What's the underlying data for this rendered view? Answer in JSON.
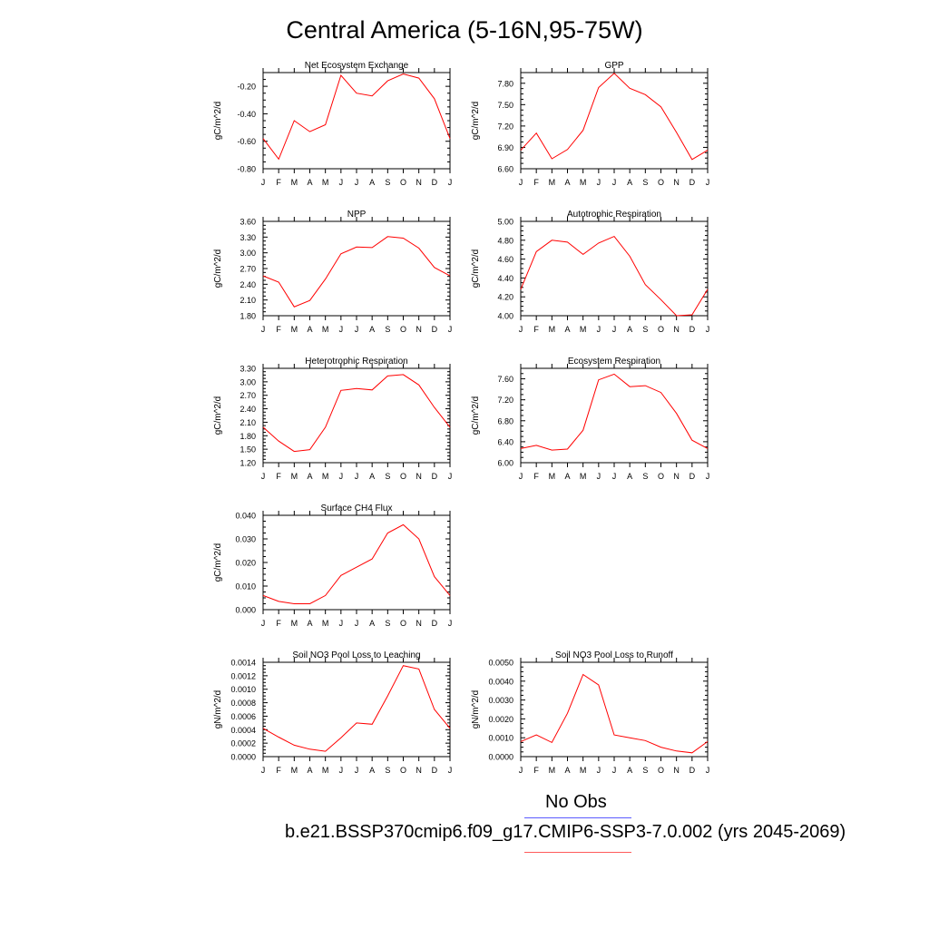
{
  "title": "Central America (5-16N,95-75W)",
  "legend": {
    "obs_label": "No Obs",
    "case_label": "b.e21.BSSP370cmip6.f09_g17.CMIP6-SSP3-7.0.002 (yrs 2045-2069)",
    "obs_color": "#5b5bff",
    "case_color": "#ff5b5b"
  },
  "colors": {
    "series": "#ff0000",
    "axis": "#000000"
  },
  "chart_data": [
    {
      "type": "line",
      "title": "Net Ecosystem Exchange",
      "ylabel": "gC/m^2/d",
      "x": [
        "J",
        "F",
        "M",
        "A",
        "M",
        "J",
        "J",
        "A",
        "S",
        "O",
        "N",
        "D",
        "J"
      ],
      "values": [
        -0.58,
        -0.73,
        -0.45,
        -0.53,
        -0.48,
        -0.12,
        -0.25,
        -0.27,
        -0.16,
        -0.11,
        -0.14,
        -0.29,
        -0.58
      ],
      "ylim": [
        -0.8,
        -0.1
      ],
      "yticks": [
        -0.8,
        -0.6,
        -0.4,
        -0.2
      ],
      "ytick_labels": [
        "-0.80",
        "-0.60",
        "-0.40",
        "-0.20"
      ]
    },
    {
      "type": "line",
      "title": "GPP",
      "ylabel": "gC/m^2/d",
      "x": [
        "J",
        "F",
        "M",
        "A",
        "M",
        "J",
        "J",
        "A",
        "S",
        "O",
        "N",
        "D",
        "J"
      ],
      "values": [
        6.86,
        7.1,
        6.74,
        6.87,
        7.14,
        7.74,
        7.94,
        7.73,
        7.64,
        7.47,
        7.11,
        6.73,
        6.86
      ],
      "ylim": [
        6.6,
        7.95
      ],
      "yticks": [
        6.6,
        6.9,
        7.2,
        7.5,
        7.8
      ],
      "ytick_labels": [
        "6.60",
        "6.90",
        "7.20",
        "7.50",
        "7.80"
      ]
    },
    {
      "type": "line",
      "title": "NPP",
      "ylabel": "gC/m^2/d",
      "x": [
        "J",
        "F",
        "M",
        "A",
        "M",
        "J",
        "J",
        "A",
        "S",
        "O",
        "N",
        "D",
        "J"
      ],
      "values": [
        2.56,
        2.44,
        1.97,
        2.09,
        2.5,
        2.98,
        3.11,
        3.1,
        3.31,
        3.28,
        3.09,
        2.72,
        2.56
      ],
      "ylim": [
        1.8,
        3.6
      ],
      "yticks": [
        1.8,
        2.1,
        2.4,
        2.7,
        3.0,
        3.3,
        3.6
      ],
      "ytick_labels": [
        "1.80",
        "2.10",
        "2.40",
        "2.70",
        "3.00",
        "3.30",
        "3.60"
      ]
    },
    {
      "type": "line",
      "title": "Autotrophic Respiration",
      "ylabel": "gC/m^2/d",
      "x": [
        "J",
        "F",
        "M",
        "A",
        "M",
        "J",
        "J",
        "A",
        "S",
        "O",
        "N",
        "D",
        "J"
      ],
      "values": [
        4.28,
        4.68,
        4.8,
        4.78,
        4.65,
        4.77,
        4.84,
        4.63,
        4.33,
        4.17,
        4.0,
        4.01,
        4.28
      ],
      "ylim": [
        4.0,
        5.0
      ],
      "yticks": [
        4.0,
        4.2,
        4.4,
        4.6,
        4.8,
        5.0
      ],
      "ytick_labels": [
        "4.00",
        "4.20",
        "4.40",
        "4.60",
        "4.80",
        "5.00"
      ]
    },
    {
      "type": "line",
      "title": "Heterotrophic Respiration",
      "ylabel": "gC/m^2/d",
      "x": [
        "J",
        "F",
        "M",
        "A",
        "M",
        "J",
        "J",
        "A",
        "S",
        "O",
        "N",
        "D",
        "J"
      ],
      "values": [
        1.99,
        1.68,
        1.45,
        1.49,
        1.99,
        2.81,
        2.85,
        2.82,
        3.13,
        3.16,
        2.93,
        2.43,
        1.99
      ],
      "ylim": [
        1.2,
        3.3
      ],
      "yticks": [
        1.2,
        1.5,
        1.8,
        2.1,
        2.4,
        2.7,
        3.0,
        3.3
      ],
      "ytick_labels": [
        "1.20",
        "1.50",
        "1.80",
        "2.10",
        "2.40",
        "2.70",
        "3.00",
        "3.30"
      ]
    },
    {
      "type": "line",
      "title": "Ecosystem Respiration",
      "ylabel": "gC/m^2/d",
      "x": [
        "J",
        "F",
        "M",
        "A",
        "M",
        "J",
        "J",
        "A",
        "S",
        "O",
        "N",
        "D",
        "J"
      ],
      "values": [
        6.27,
        6.33,
        6.24,
        6.26,
        6.62,
        7.58,
        7.69,
        7.45,
        7.47,
        7.34,
        6.94,
        6.43,
        6.27
      ],
      "ylim": [
        6.0,
        7.8
      ],
      "yticks": [
        6.0,
        6.4,
        6.8,
        7.2,
        7.6
      ],
      "ytick_labels": [
        "6.00",
        "6.40",
        "6.80",
        "7.20",
        "7.60"
      ]
    },
    {
      "type": "line",
      "title": "Surface CH4 Flux",
      "ylabel": "gC/m^2/d",
      "x": [
        "J",
        "F",
        "M",
        "A",
        "M",
        "J",
        "J",
        "A",
        "S",
        "O",
        "N",
        "D",
        "J"
      ],
      "values": [
        0.006,
        0.0035,
        0.0025,
        0.0025,
        0.006,
        0.0145,
        0.018,
        0.0215,
        0.0325,
        0.036,
        0.03,
        0.014,
        0.006
      ],
      "ylim": [
        0.0,
        0.04
      ],
      "yticks": [
        0.0,
        0.01,
        0.02,
        0.03,
        0.04
      ],
      "ytick_labels": [
        "0.000",
        "0.010",
        "0.020",
        "0.030",
        "0.040"
      ]
    },
    {
      "type": "line",
      "title": "Soil NO3 Pool Loss to Leaching",
      "ylabel": "gN/m^2/d",
      "x": [
        "J",
        "F",
        "M",
        "A",
        "M",
        "J",
        "J",
        "A",
        "S",
        "O",
        "N",
        "D",
        "J"
      ],
      "values": [
        0.00042,
        0.00029,
        0.00017,
        0.00011,
        8e-05,
        0.00028,
        0.0005,
        0.00048,
        0.0009,
        0.00135,
        0.0013,
        0.0007,
        0.00042
      ],
      "ylim": [
        0.0,
        0.0014
      ],
      "yticks": [
        0,
        0.0002,
        0.0004,
        0.0006,
        0.0008,
        0.001,
        0.0012,
        0.0014
      ],
      "ytick_labels": [
        "0.0000",
        "0.0002",
        "0.0004",
        "0.0006",
        "0.0008",
        "0.0010",
        "0.0012",
        "0.0014"
      ]
    },
    {
      "type": "line",
      "title": "Soil NO3 Pool Loss to Runoff",
      "ylabel": "gN/m^2/d",
      "x": [
        "J",
        "F",
        "M",
        "A",
        "M",
        "J",
        "J",
        "A",
        "S",
        "O",
        "N",
        "D",
        "J"
      ],
      "values": [
        0.0008,
        0.00115,
        0.00075,
        0.0023,
        0.00435,
        0.0038,
        0.00115,
        0.001,
        0.00085,
        0.0005,
        0.0003,
        0.0002,
        0.0008
      ],
      "ylim": [
        0.0,
        0.005
      ],
      "yticks": [
        0,
        0.001,
        0.002,
        0.003,
        0.004,
        0.005
      ],
      "ytick_labels": [
        "0.0000",
        "0.0010",
        "0.0020",
        "0.0030",
        "0.0040",
        "0.0050"
      ]
    }
  ]
}
